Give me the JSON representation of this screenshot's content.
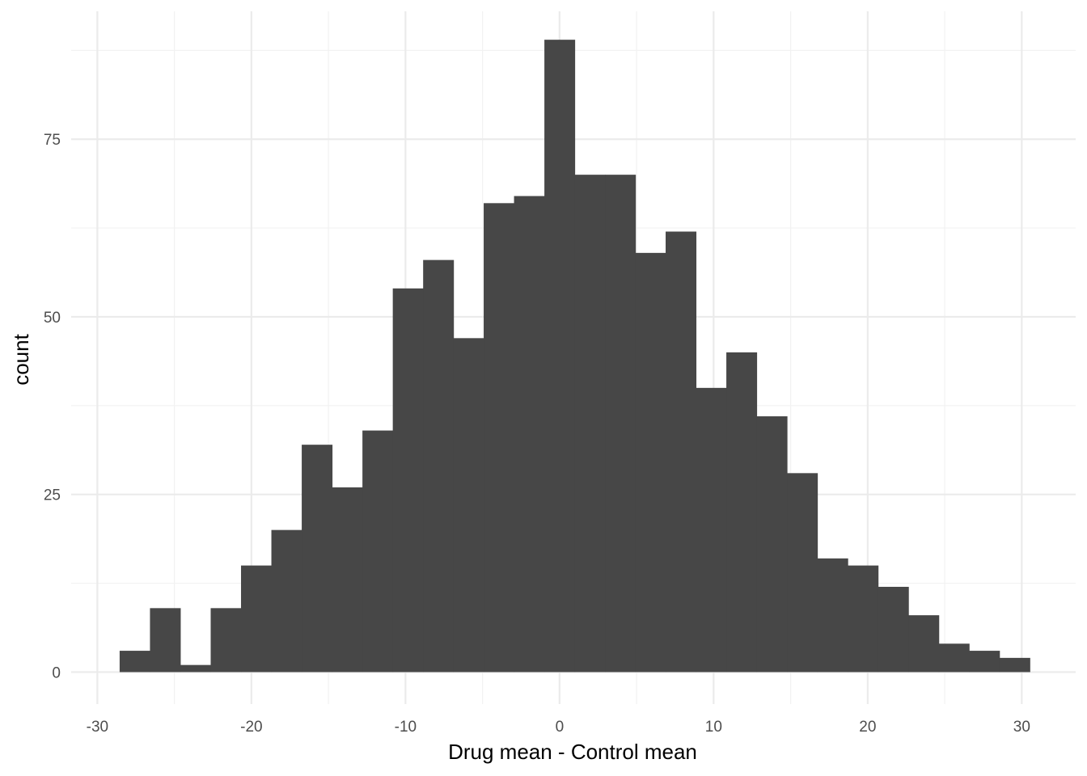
{
  "chart_data": {
    "type": "bar",
    "subtype": "histogram",
    "title": "",
    "xlabel": "Drug mean - Control mean",
    "ylabel": "count",
    "xlim": [
      -31.7,
      33.5
    ],
    "ylim": [
      -4.5,
      93
    ],
    "x_ticks": [
      -30,
      -20,
      -10,
      0,
      10,
      20,
      30
    ],
    "x_tick_labels": [
      "-30",
      "-20",
      "-10",
      "0",
      "10",
      "20",
      "30"
    ],
    "x_minor_ticks": [
      -25,
      -15,
      -5,
      5,
      15,
      25
    ],
    "y_ticks": [
      0,
      25,
      50,
      75
    ],
    "y_tick_labels": [
      "0",
      "25",
      "50",
      "75"
    ],
    "y_minor_ticks": [
      12.5,
      37.5,
      62.5,
      87.5
    ],
    "grid": true,
    "bin_width": 1.97,
    "bin_centers": [
      -27.57,
      -25.6,
      -23.63,
      -21.66,
      -19.69,
      -17.72,
      -15.75,
      -13.78,
      -11.81,
      -9.84,
      -7.87,
      -5.91,
      -3.94,
      -1.97,
      0.0,
      1.97,
      3.94,
      5.91,
      7.87,
      9.84,
      11.81,
      13.78,
      15.75,
      17.72,
      19.69,
      21.66,
      23.63,
      25.6,
      27.57,
      29.54
    ],
    "values": [
      3,
      9,
      1,
      9,
      15,
      20,
      32,
      26,
      34,
      54,
      58,
      47,
      66,
      67,
      89,
      70,
      70,
      59,
      62,
      40,
      45,
      36,
      28,
      16,
      15,
      12,
      8,
      4,
      3,
      2
    ],
    "bar_color": "#474747",
    "grid_major_color": "#ebebeb",
    "grid_minor_color": "#f2f2f2"
  }
}
